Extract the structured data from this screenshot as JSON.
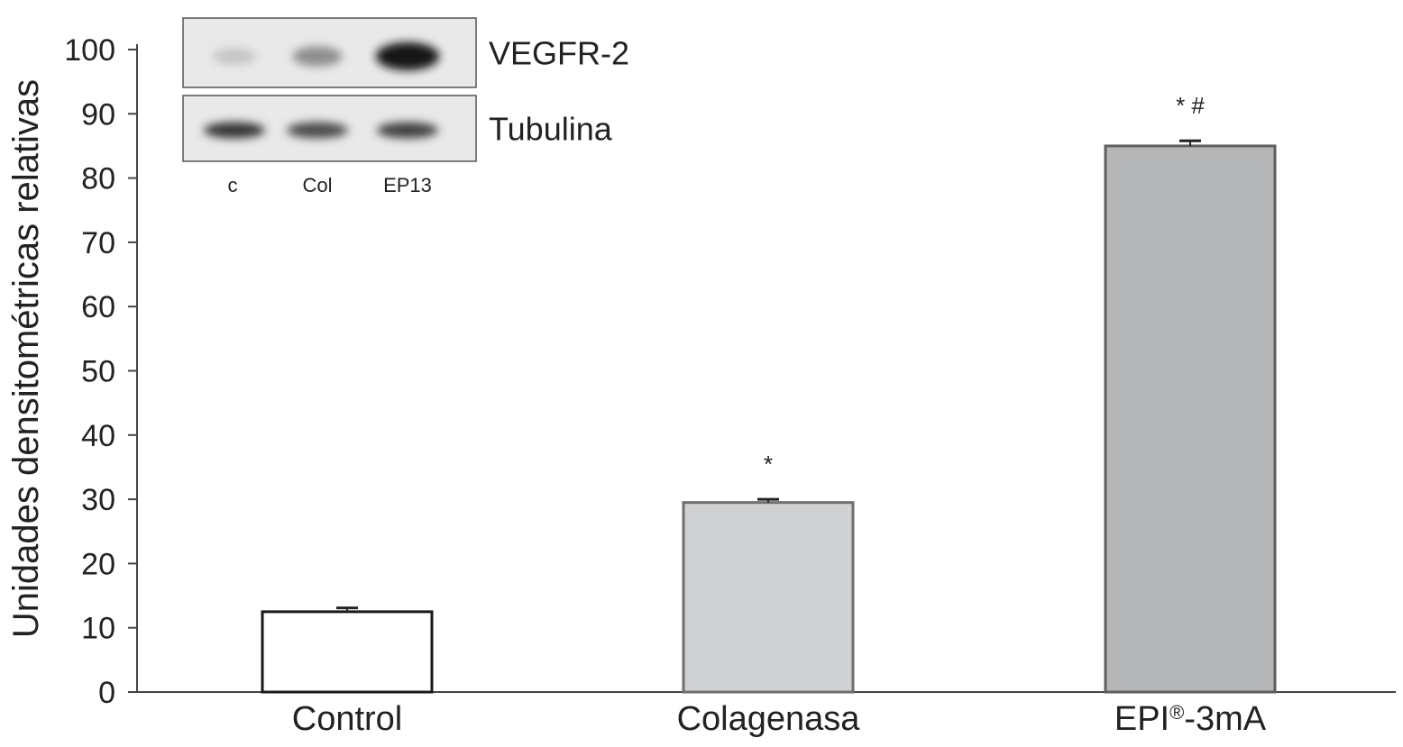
{
  "chart_data": {
    "type": "bar",
    "categories": [
      "Control",
      "Colagenasa",
      "EPI"
    ],
    "category_superscripts": [
      "",
      "",
      "®"
    ],
    "category_suffixes": [
      "",
      "",
      "-3mA"
    ],
    "values": [
      12.5,
      29.5,
      85.0
    ],
    "errors": [
      0.6,
      0.5,
      0.8
    ],
    "significance": [
      "",
      "*",
      "* #"
    ],
    "bar_fills": [
      "#ffffff",
      "#d0d1d3",
      "#b5b6b8"
    ],
    "bar_strokes": [
      "#1a1a1a",
      "#6e6e6e",
      "#5f5f5f"
    ],
    "ylabel": "Unidades densitométricas relativas",
    "xlabel": "",
    "ylim": [
      0,
      100
    ],
    "yticks": [
      0,
      10,
      20,
      30,
      40,
      50,
      60,
      70,
      80,
      90,
      100
    ],
    "grid": false
  },
  "inset": {
    "blots": [
      {
        "label": "VEGFR-2",
        "intensities": [
          0.15,
          0.4,
          0.95
        ]
      },
      {
        "label": "Tubulina",
        "intensities": [
          0.8,
          0.7,
          0.75
        ]
      }
    ],
    "lanes": [
      "c",
      "Col",
      "EP13"
    ]
  }
}
